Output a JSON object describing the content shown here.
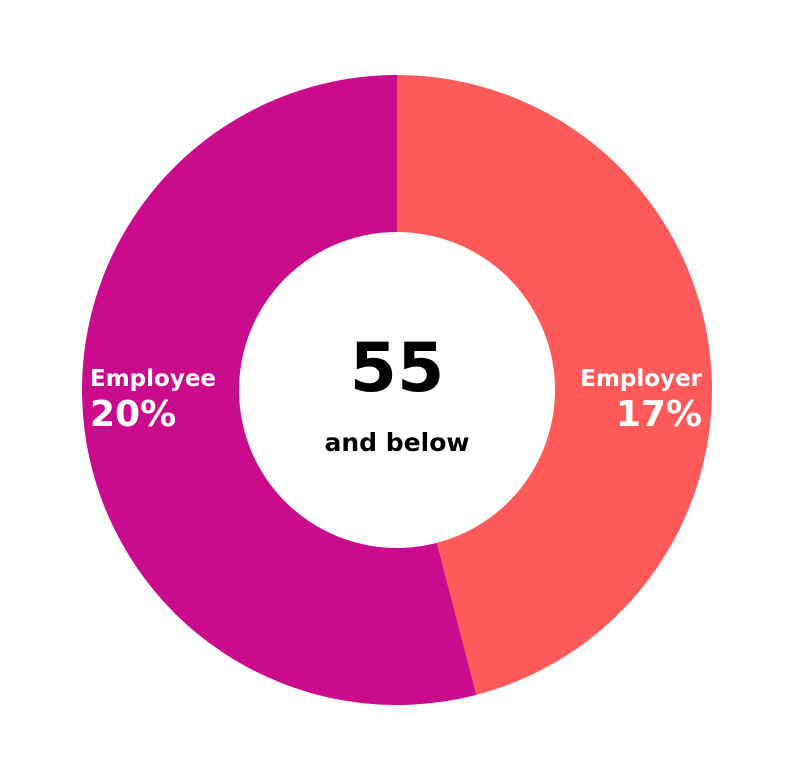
{
  "chart_data": {
    "type": "pie",
    "donut": true,
    "center_title": "55",
    "center_subtitle": "and below",
    "slices": [
      {
        "label": "Employer",
        "value": 17,
        "value_label": "17%",
        "color": "#FF5A5A"
      },
      {
        "label": "Employee",
        "value": 20,
        "value_label": "20%",
        "color": "#C90B8C"
      }
    ]
  }
}
